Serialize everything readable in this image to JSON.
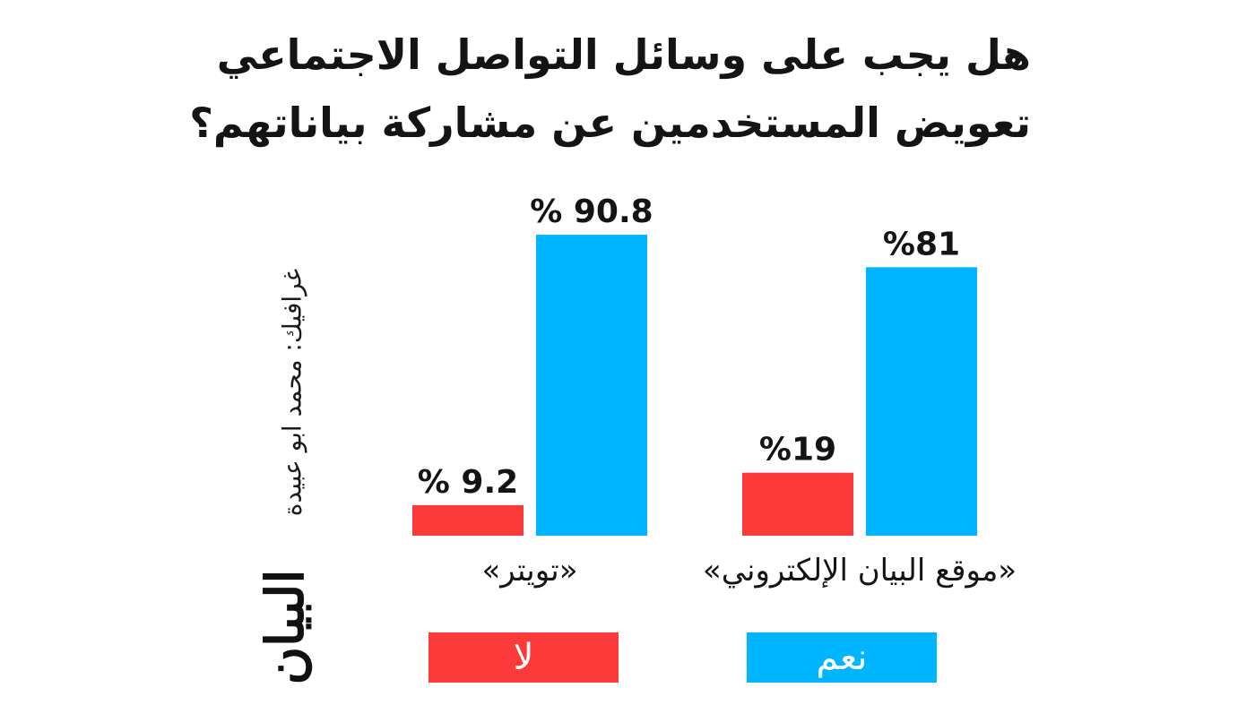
{
  "title_lines": [
    "هل يجب على وسائل التواصل الاجتماعي",
    "تعويض المستخدمين عن مشاركة بياناتهم؟"
  ],
  "credit": "غرافيك: محمد ابو عبيدة",
  "logo": "البيان",
  "colors": {
    "no": "#fc3a3a",
    "yes": "#00b5ff"
  },
  "legend": [
    {
      "key": "no",
      "label": "لا"
    },
    {
      "key": "yes",
      "label": "نعم"
    }
  ],
  "chart_data": {
    "type": "bar",
    "title": "هل يجب على وسائل التواصل الاجتماعي تعويض المستخدمين عن مشاركة بياناتهم؟",
    "categories": [
      "«تويتر»",
      "«موقع البيان الإلكتروني»"
    ],
    "series": [
      {
        "name": "لا",
        "values": [
          9.2,
          19
        ],
        "labels": [
          "% 9.2",
          "%19"
        ]
      },
      {
        "name": "نعم",
        "values": [
          90.8,
          81
        ],
        "labels": [
          "% 90.8",
          "%81"
        ]
      }
    ],
    "ylim": [
      0,
      100
    ],
    "grid": false,
    "legend_position": "bottom"
  }
}
